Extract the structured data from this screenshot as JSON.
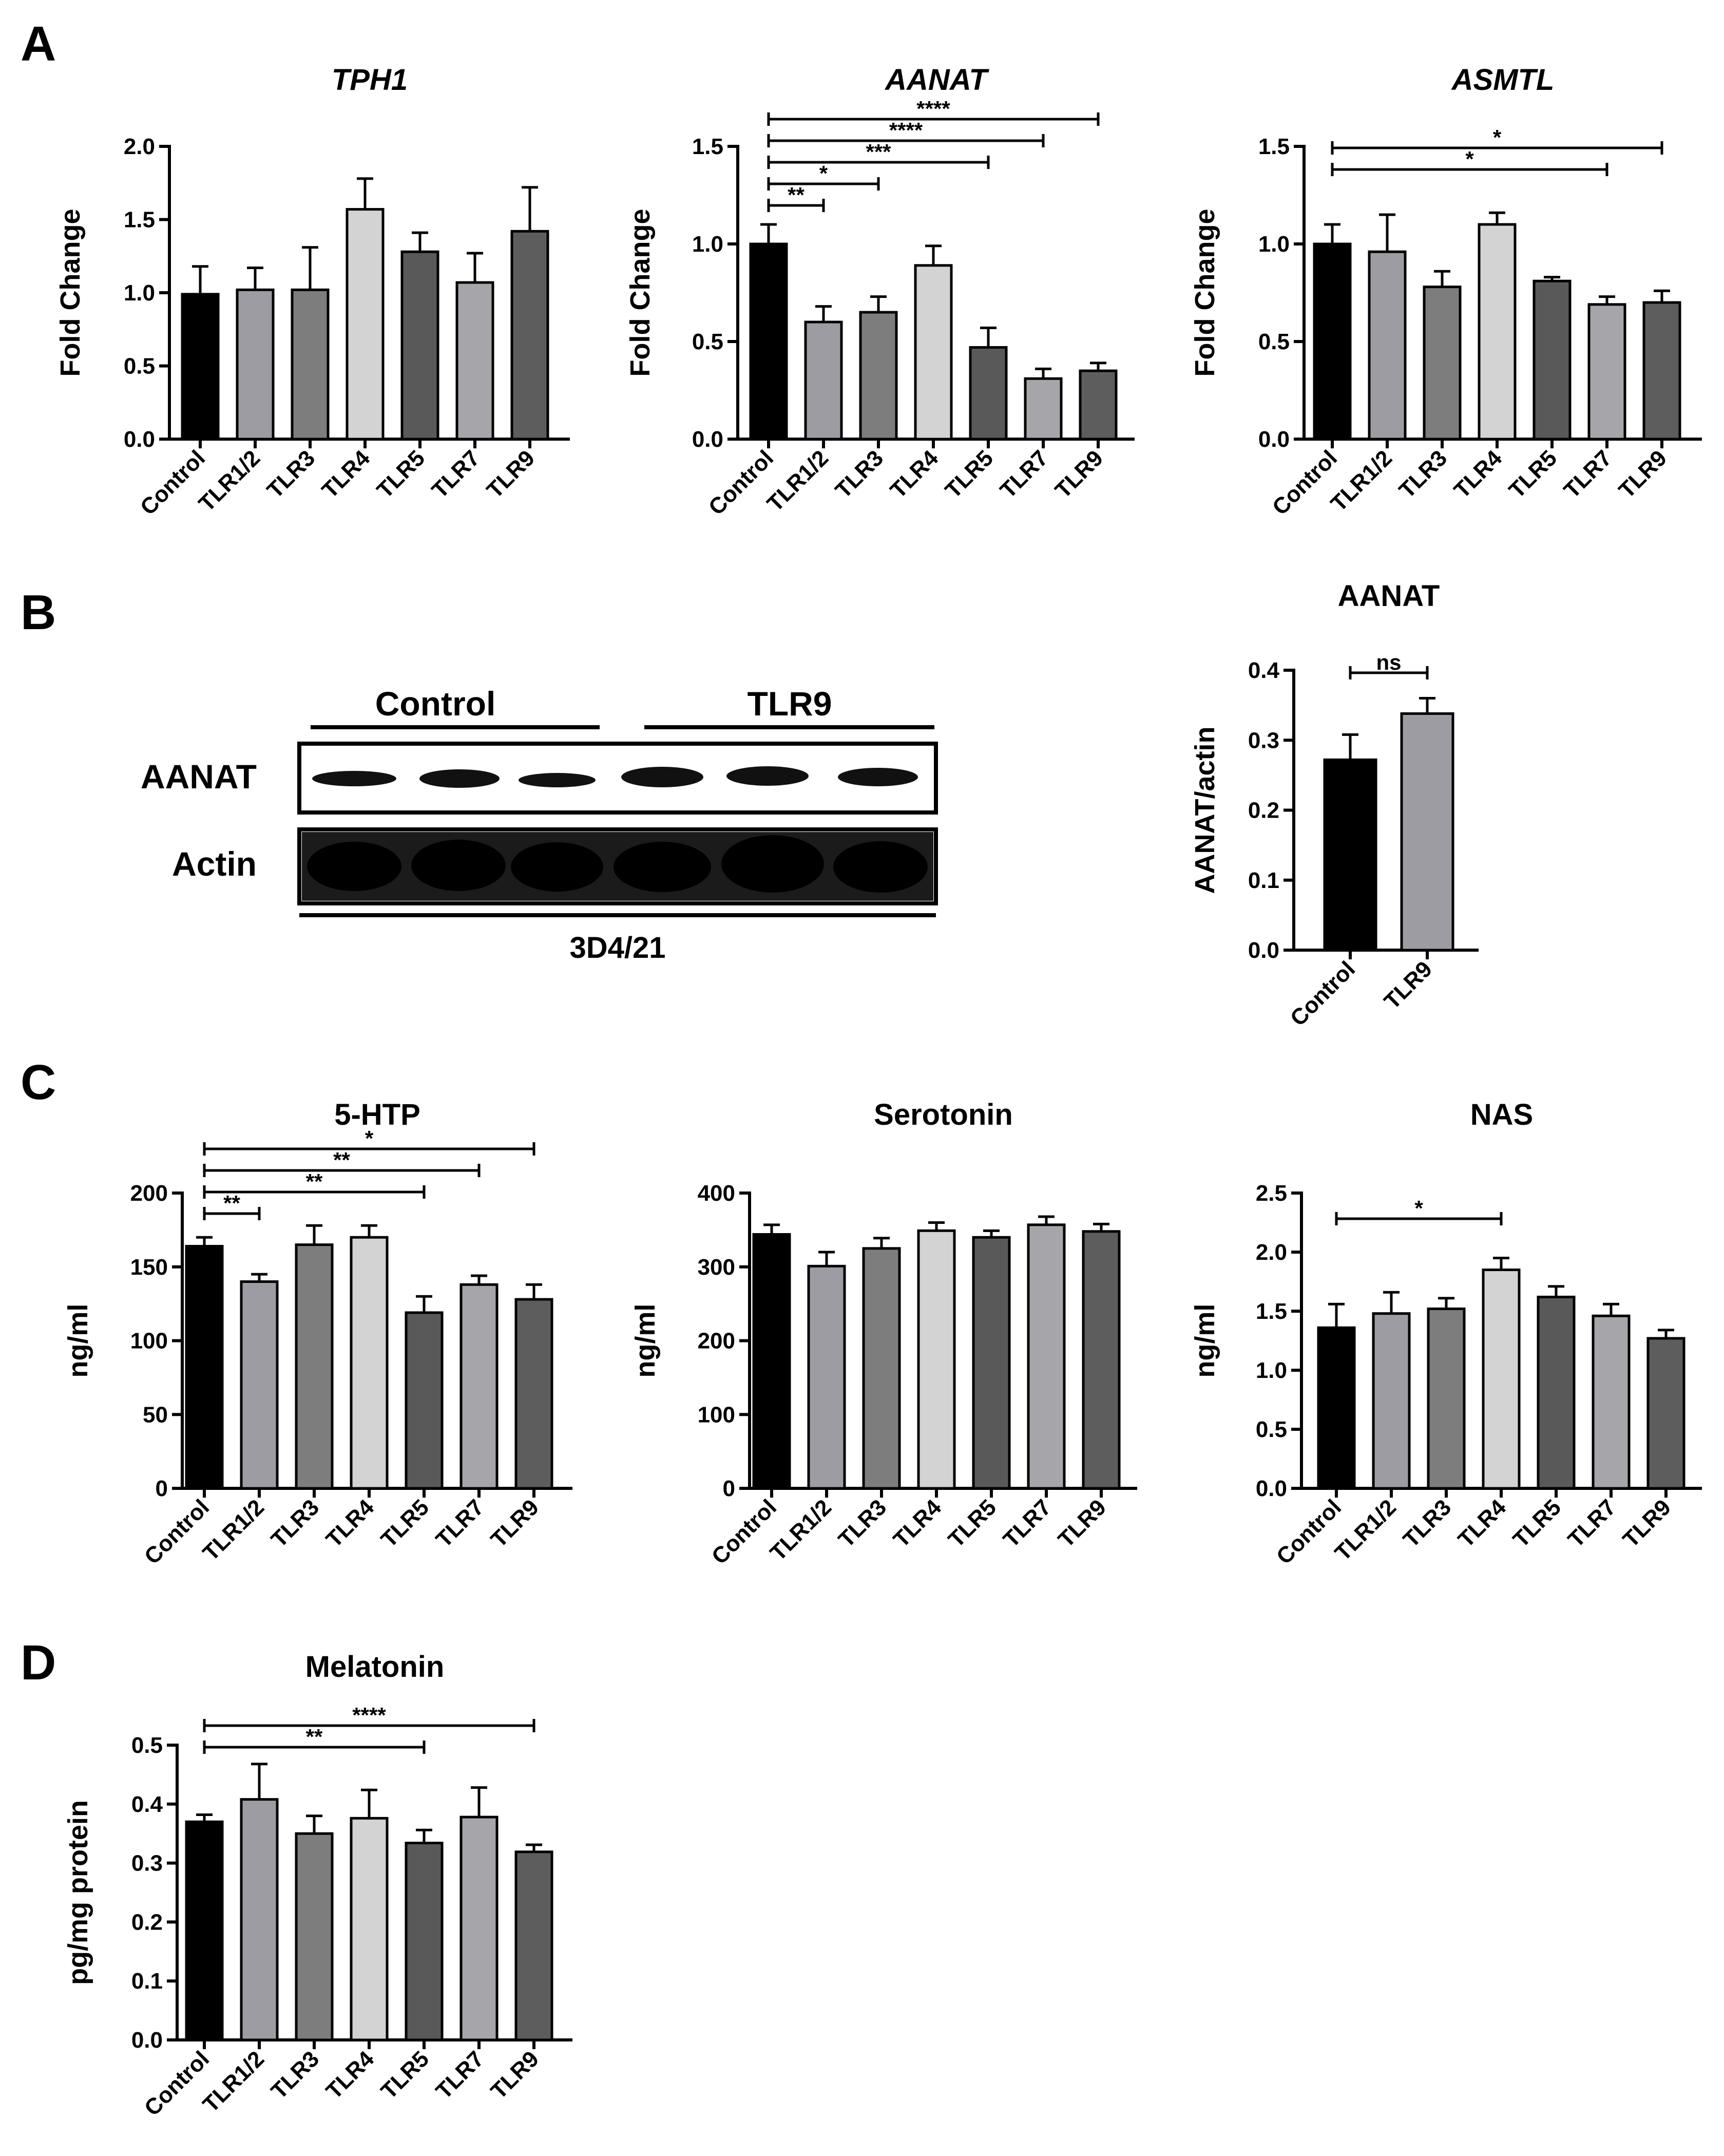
{
  "panels": [
    "A",
    "B",
    "C",
    "D"
  ],
  "colors": [
    "#000000",
    "#9c9ca2",
    "#7d7d7d",
    "#d3d3d3",
    "#595959",
    "#a6a6aa",
    "#5d5d5d"
  ],
  "chart_data": [
    {
      "id": "tph1",
      "panel": "A",
      "type": "bar",
      "title": "TPH1",
      "title_italic": true,
      "ylabel": "Fold Change",
      "ylim": [
        0,
        2.0
      ],
      "yticks": [
        0.0,
        0.5,
        1.0,
        1.5,
        2.0
      ],
      "yticklabels": [
        "0.0",
        "0.5",
        "1.0",
        "1.5",
        "2.0"
      ],
      "categories": [
        "Control",
        "TLR1/2",
        "TLR3",
        "TLR4",
        "TLR5",
        "TLR7",
        "TLR9"
      ],
      "values": [
        0.99,
        1.02,
        1.02,
        1.57,
        1.28,
        1.07,
        1.42
      ],
      "errors": [
        0.19,
        0.15,
        0.29,
        0.21,
        0.13,
        0.2,
        0.3
      ],
      "brackets": []
    },
    {
      "id": "aanat",
      "panel": "A",
      "type": "bar",
      "title": "AANAT",
      "title_italic": true,
      "ylabel": "Fold Change",
      "ylim": [
        0,
        1.5
      ],
      "yticks": [
        0.0,
        0.5,
        1.0,
        1.5
      ],
      "yticklabels": [
        "0.0",
        "0.5",
        "1.0",
        "1.5"
      ],
      "categories": [
        "Control",
        "TLR1/2",
        "TLR3",
        "TLR4",
        "TLR5",
        "TLR7",
        "TLR9"
      ],
      "values": [
        1.0,
        0.6,
        0.65,
        0.89,
        0.47,
        0.31,
        0.35
      ],
      "errors": [
        0.1,
        0.08,
        0.08,
        0.1,
        0.1,
        0.05,
        0.04
      ],
      "brackets": [
        {
          "from": 0,
          "to": 6,
          "label": "****"
        },
        {
          "from": 0,
          "to": 5,
          "label": "****"
        },
        {
          "from": 0,
          "to": 4,
          "label": "***"
        },
        {
          "from": 0,
          "to": 2,
          "label": "*"
        },
        {
          "from": 0,
          "to": 1,
          "label": "**"
        }
      ]
    },
    {
      "id": "asmtl",
      "panel": "A",
      "type": "bar",
      "title": "ASMTL",
      "title_italic": true,
      "ylabel": "Fold Change",
      "ylim": [
        0,
        1.5
      ],
      "yticks": [
        0.0,
        0.5,
        1.0,
        1.5
      ],
      "yticklabels": [
        "0.0",
        "0.5",
        "1.0",
        "1.5"
      ],
      "categories": [
        "Control",
        "TLR1/2",
        "TLR3",
        "TLR4",
        "TLR5",
        "TLR7",
        "TLR9"
      ],
      "values": [
        1.0,
        0.96,
        0.78,
        1.1,
        0.81,
        0.69,
        0.7
      ],
      "errors": [
        0.1,
        0.19,
        0.08,
        0.06,
        0.02,
        0.04,
        0.06
      ],
      "brackets": [
        {
          "from": 0,
          "to": 6,
          "label": "*"
        },
        {
          "from": 0,
          "to": 5,
          "label": "*"
        }
      ]
    },
    {
      "id": "aanat_wb",
      "panel": "B",
      "type": "bar",
      "title": "AANAT",
      "title_italic": false,
      "ylabel": "AANAT/actin",
      "ylim": [
        0,
        0.4
      ],
      "yticks": [
        0.0,
        0.1,
        0.2,
        0.3,
        0.4
      ],
      "yticklabels": [
        "0.0",
        "0.1",
        "0.2",
        "0.3",
        "0.4"
      ],
      "categories": [
        "Control",
        "TLR9"
      ],
      "values": [
        0.272,
        0.338
      ],
      "errors": [
        0.036,
        0.022
      ],
      "brackets": [
        {
          "from": 0,
          "to": 1,
          "label": "ns"
        }
      ]
    },
    {
      "id": "htp",
      "panel": "C",
      "type": "bar",
      "title": "5-HTP",
      "title_italic": false,
      "ylabel": "ng/ml",
      "ylim": [
        0,
        200
      ],
      "yticks": [
        0,
        50,
        100,
        150,
        200
      ],
      "yticklabels": [
        "0",
        "50",
        "100",
        "150",
        "200"
      ],
      "categories": [
        "Control",
        "TLR1/2",
        "TLR3",
        "TLR4",
        "TLR5",
        "TLR7",
        "TLR9"
      ],
      "values": [
        164,
        140,
        165,
        170,
        119,
        138,
        128
      ],
      "errors": [
        6,
        5,
        13,
        8,
        11,
        6,
        10
      ],
      "brackets": [
        {
          "from": 0,
          "to": 6,
          "label": "*"
        },
        {
          "from": 0,
          "to": 5,
          "label": "**"
        },
        {
          "from": 0,
          "to": 4,
          "label": "**"
        },
        {
          "from": 0,
          "to": 1,
          "label": "**"
        }
      ]
    },
    {
      "id": "serotonin",
      "panel": "C",
      "type": "bar",
      "title": "Serotonin",
      "title_italic": false,
      "ylabel": "ng/ml",
      "ylim": [
        0,
        400
      ],
      "yticks": [
        0,
        100,
        200,
        300,
        400
      ],
      "yticklabels": [
        "0",
        "100",
        "200",
        "300",
        "400"
      ],
      "categories": [
        "Control",
        "TLR1/2",
        "TLR3",
        "TLR4",
        "TLR5",
        "TLR7",
        "TLR9"
      ],
      "values": [
        344,
        301,
        325,
        349,
        340,
        357,
        348
      ],
      "errors": [
        13,
        19,
        14,
        11,
        9,
        11,
        10
      ],
      "brackets": []
    },
    {
      "id": "nas",
      "panel": "C",
      "type": "bar",
      "title": "NAS",
      "title_italic": false,
      "ylabel": "ng/ml",
      "ylim": [
        0,
        2.5
      ],
      "yticks": [
        0.0,
        0.5,
        1.0,
        1.5,
        2.0,
        2.5
      ],
      "yticklabels": [
        "0.0",
        "0.5",
        "1.0",
        "1.5",
        "2.0",
        "2.5"
      ],
      "categories": [
        "Control",
        "TLR1/2",
        "TLR3",
        "TLR4",
        "TLR5",
        "TLR7",
        "TLR9"
      ],
      "values": [
        1.36,
        1.48,
        1.52,
        1.85,
        1.62,
        1.46,
        1.27
      ],
      "errors": [
        0.2,
        0.18,
        0.09,
        0.1,
        0.09,
        0.1,
        0.07
      ],
      "brackets": [
        {
          "from": 0,
          "to": 3,
          "label": "*"
        }
      ]
    },
    {
      "id": "melatonin",
      "panel": "D",
      "type": "bar",
      "title": "Melatonin",
      "title_italic": false,
      "ylabel": "pg/mg protein",
      "ylim": [
        0,
        0.5
      ],
      "yticks": [
        0.0,
        0.1,
        0.2,
        0.3,
        0.4,
        0.5
      ],
      "yticklabels": [
        "0.0",
        "0.1",
        "0.2",
        "0.3",
        "0.4",
        "0.5"
      ],
      "categories": [
        "Control",
        "TLR1/2",
        "TLR3",
        "TLR4",
        "TLR5",
        "TLR7",
        "TLR9"
      ],
      "values": [
        0.37,
        0.408,
        0.35,
        0.376,
        0.334,
        0.378,
        0.319
      ],
      "errors": [
        0.012,
        0.06,
        0.03,
        0.048,
        0.022,
        0.05,
        0.012
      ],
      "brackets": [
        {
          "from": 0,
          "to": 6,
          "label": "****"
        },
        {
          "from": 0,
          "to": 4,
          "label": "**"
        }
      ]
    }
  ],
  "western_blot": {
    "group_labels": [
      "Control",
      "TLR9"
    ],
    "row_labels": [
      "AANAT",
      "Actin"
    ],
    "cell_line": "3D4/21"
  }
}
